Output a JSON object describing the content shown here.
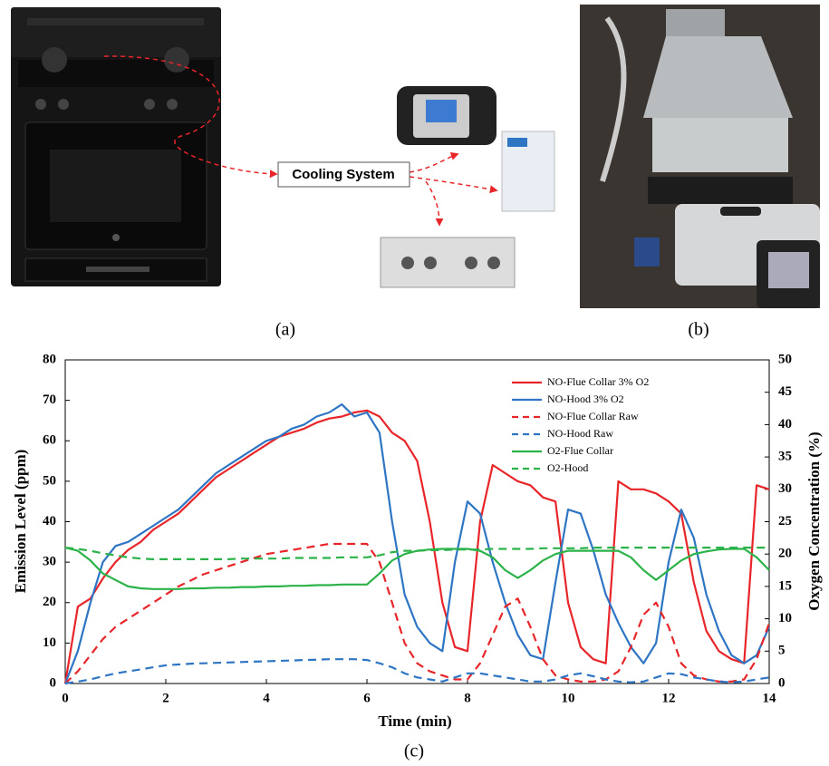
{
  "panels": {
    "a": {
      "label": "(a)",
      "box_text": "Cooling System"
    },
    "b": {
      "label": "(b)"
    },
    "c": {
      "label": "(c)"
    }
  },
  "chart_data": {
    "type": "line",
    "x_label": "Time (min)",
    "y_label": "Emission Level (ppm)",
    "y2_label": "Oxygen Concentration (%)",
    "x": [
      0,
      0.25,
      0.5,
      0.75,
      1,
      1.25,
      1.5,
      1.75,
      2,
      2.25,
      2.5,
      2.75,
      3,
      3.25,
      3.5,
      3.75,
      4,
      4.25,
      4.5,
      4.75,
      5,
      5.25,
      5.5,
      5.75,
      6,
      6.25,
      6.5,
      6.75,
      7,
      7.25,
      7.5,
      7.75,
      8,
      8.25,
      8.5,
      8.75,
      9,
      9.25,
      9.5,
      9.75,
      10,
      10.25,
      10.5,
      10.75,
      11,
      11.25,
      11.5,
      11.75,
      12,
      12.25,
      12.5,
      12.75,
      13,
      13.25,
      13.5,
      13.75,
      14
    ],
    "xlim": [
      0,
      14
    ],
    "xticks": [
      0,
      2,
      4,
      6,
      8,
      10,
      12,
      14
    ],
    "ylim": [
      0,
      80
    ],
    "yticks": [
      0,
      10,
      20,
      30,
      40,
      50,
      60,
      70,
      80
    ],
    "y2lim": [
      0,
      50
    ],
    "y2ticks": [
      0,
      5,
      10,
      15,
      20,
      25,
      30,
      35,
      40,
      45,
      50
    ],
    "legend": "top-right",
    "series": [
      {
        "name": "NO-Flue Collar 3% O2",
        "color": "#e8262a",
        "style": "solid",
        "axis": "y",
        "values": [
          0,
          19,
          21,
          26,
          30,
          33,
          35,
          38,
          40,
          42,
          45,
          48,
          51,
          53,
          55,
          57,
          59,
          61,
          62,
          63,
          64.5,
          65.5,
          66,
          67,
          67.5,
          66,
          62,
          60,
          55,
          40,
          20,
          9,
          8,
          40,
          54,
          52,
          50,
          49,
          46,
          45,
          20,
          9,
          6,
          5,
          50,
          48,
          48,
          47,
          45,
          42,
          25,
          13,
          8,
          6,
          5,
          49,
          48
        ]
      },
      {
        "name": "NO-Hood 3% O2",
        "color": "#2e75c4",
        "style": "solid",
        "axis": "y",
        "values": [
          0,
          8,
          20,
          30,
          34,
          35,
          37,
          39,
          41,
          43,
          46,
          49,
          52,
          54,
          56,
          58,
          60,
          61,
          63,
          64,
          66,
          67,
          69,
          66,
          67,
          62,
          40,
          22,
          14,
          10,
          8,
          30,
          45,
          42,
          30,
          20,
          12,
          7,
          6,
          25,
          43,
          42,
          33,
          22,
          15,
          9,
          5,
          10,
          30,
          43,
          36,
          22,
          13,
          7,
          5,
          7,
          14
        ]
      },
      {
        "name": "NO-Flue Collar Raw",
        "color": "#e8262a",
        "style": "dashed",
        "axis": "y",
        "values": [
          0,
          3,
          7,
          11,
          14,
          16,
          18,
          20,
          22,
          24,
          25.5,
          27,
          28,
          29,
          30,
          31,
          32,
          32.5,
          33,
          33.5,
          34,
          34.5,
          34.5,
          34.5,
          34.5,
          30,
          20,
          10,
          5,
          3,
          2,
          1,
          1,
          5,
          12,
          19,
          21,
          14,
          6,
          2,
          1,
          0.5,
          0.5,
          1,
          3,
          9,
          17,
          20,
          14,
          5,
          2,
          1,
          0.5,
          0.5,
          1,
          6,
          15
        ]
      },
      {
        "name": "NO-Hood Raw",
        "color": "#2e75c4",
        "style": "dashed",
        "axis": "y",
        "values": [
          0,
          0.5,
          1,
          1.8,
          2.5,
          3,
          3.5,
          4,
          4.5,
          4.7,
          4.9,
          5,
          5.1,
          5.2,
          5.3,
          5.4,
          5.5,
          5.6,
          5.7,
          5.8,
          5.9,
          6,
          6,
          6,
          5.8,
          5,
          4,
          2.5,
          1.5,
          1,
          0.5,
          1.5,
          2.5,
          2.5,
          2,
          1.5,
          1,
          0.5,
          0.5,
          1,
          2,
          2.5,
          1.8,
          1,
          0.5,
          0.3,
          0.5,
          1.5,
          2.5,
          2.3,
          1.5,
          1,
          0.5,
          0.3,
          0.5,
          1,
          1.5
        ]
      },
      {
        "name": "O2-Flue Collar",
        "color": "#2bb34a",
        "style": "solid",
        "axis": "y2",
        "values": [
          21,
          20.5,
          19,
          17,
          16,
          15,
          14.7,
          14.6,
          14.6,
          14.6,
          14.7,
          14.7,
          14.8,
          14.8,
          14.9,
          14.9,
          15,
          15,
          15.1,
          15.1,
          15.2,
          15.2,
          15.3,
          15.3,
          15.3,
          17,
          19,
          20,
          20.5,
          20.7,
          20.8,
          20.8,
          20.8,
          20.5,
          19.5,
          17.5,
          16.3,
          17.5,
          19,
          20,
          20.5,
          20.5,
          20.5,
          20.5,
          20.5,
          19.5,
          17.5,
          16,
          17.5,
          19,
          20,
          20.4,
          20.7,
          20.8,
          20.8,
          19.5,
          17.5
        ]
      },
      {
        "name": "O2-Hood",
        "color": "#2bb34a",
        "style": "dashed",
        "axis": "y2",
        "values": [
          21,
          20.8,
          20.5,
          20.1,
          19.8,
          19.5,
          19.3,
          19.2,
          19.2,
          19.2,
          19.2,
          19.2,
          19.2,
          19.2,
          19.3,
          19.3,
          19.3,
          19.3,
          19.4,
          19.4,
          19.4,
          19.4,
          19.5,
          19.5,
          19.5,
          19.8,
          20.3,
          20.5,
          20.5,
          20.6,
          20.6,
          20.7,
          20.7,
          20.7,
          20.8,
          20.8,
          20.8,
          20.8,
          20.9,
          20.9,
          20.9,
          20.9,
          21,
          21,
          21,
          21,
          21,
          21,
          21,
          21,
          21,
          21,
          21,
          21,
          21,
          21,
          21
        ]
      }
    ]
  }
}
